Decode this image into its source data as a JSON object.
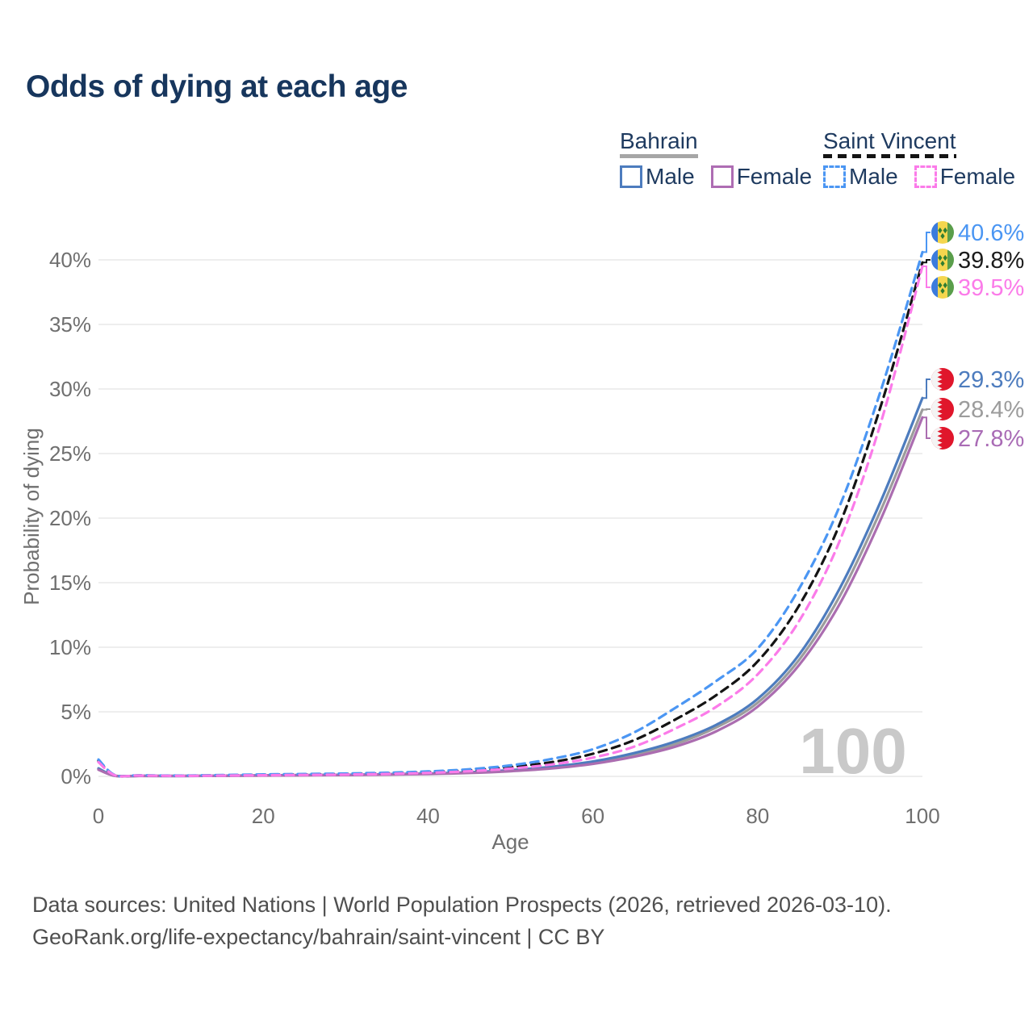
{
  "title": "Odds of dying at each age",
  "legend": {
    "groups": [
      {
        "name": "Bahrain",
        "rule_color": "#a6a6a6",
        "rule_style": "solid",
        "items": [
          {
            "label": "Male",
            "color": "#4d7cbe",
            "dash": "solid"
          },
          {
            "label": "Female",
            "color": "#ae6db3",
            "dash": "solid"
          }
        ]
      },
      {
        "name": "Saint Vincent",
        "rule_color": "#141414",
        "rule_style": "dashed",
        "items": [
          {
            "label": "Male",
            "color": "#4b96f3",
            "dash": "dashed"
          },
          {
            "label": "Female",
            "color": "#fb7be9",
            "dash": "dashed"
          }
        ]
      }
    ]
  },
  "chart_data": {
    "type": "line",
    "title": "Odds of dying at each age",
    "xlabel": "Age",
    "ylabel": "Probability of dying",
    "xlim": [
      0,
      100
    ],
    "ylim": [
      0,
      42
    ],
    "grid": true,
    "legend_position": "top-right",
    "watermark": "100",
    "xticks": {
      "values": [
        0,
        20,
        40,
        60,
        80,
        100
      ],
      "labels": [
        "0",
        "20",
        "40",
        "60",
        "80",
        "100"
      ]
    },
    "yticks": {
      "values": [
        0,
        5,
        10,
        15,
        20,
        25,
        30,
        35,
        40
      ],
      "labels": [
        "0%",
        "5%",
        "10%",
        "15%",
        "20%",
        "25%",
        "30%",
        "35%",
        "40%"
      ]
    },
    "x": [
      0,
      2,
      5,
      10,
      15,
      20,
      25,
      30,
      35,
      40,
      45,
      50,
      55,
      60,
      65,
      70,
      75,
      80,
      85,
      90,
      95,
      100
    ],
    "series": [
      {
        "name": "Bahrain All",
        "country": "Bahrain",
        "sex": "all",
        "color": "#9c9c9c",
        "dash": "solid",
        "values": [
          0.57,
          0.05,
          0.04,
          0.03,
          0.05,
          0.07,
          0.09,
          0.11,
          0.15,
          0.2,
          0.29,
          0.44,
          0.68,
          1.06,
          1.66,
          2.5,
          3.8,
          5.7,
          9.0,
          14.0,
          20.7,
          28.4
        ],
        "end_label": {
          "text": "28.4%",
          "color": "#9c9c9c",
          "flag": "bahrain-flag-icon"
        }
      },
      {
        "name": "Bahrain Male",
        "country": "Bahrain",
        "sex": "male",
        "color": "#4d7cbe",
        "dash": "solid",
        "values": [
          0.62,
          0.05,
          0.04,
          0.03,
          0.05,
          0.08,
          0.1,
          0.12,
          0.16,
          0.22,
          0.32,
          0.48,
          0.74,
          1.15,
          1.8,
          2.7,
          4.0,
          6.0,
          9.4,
          14.6,
          21.4,
          29.3
        ],
        "end_label": {
          "text": "29.3%",
          "color": "#4d7cbe",
          "flag": "bahrain-flag-icon"
        }
      },
      {
        "name": "Bahrain Female",
        "country": "Bahrain",
        "sex": "female",
        "color": "#ab6db0",
        "dash": "solid",
        "values": [
          0.52,
          0.04,
          0.03,
          0.03,
          0.04,
          0.06,
          0.08,
          0.1,
          0.13,
          0.18,
          0.26,
          0.4,
          0.62,
          0.97,
          1.52,
          2.3,
          3.5,
          5.4,
          8.6,
          13.4,
          20.0,
          27.8
        ],
        "end_label": {
          "text": "27.8%",
          "color": "#a96bb5",
          "flag": "bahrain-flag-icon"
        }
      },
      {
        "name": "Saint Vincent All",
        "country": "Saint Vincent",
        "sex": "all",
        "color": "#141414",
        "dash": "dashed",
        "values": [
          1.2,
          0.09,
          0.07,
          0.05,
          0.08,
          0.12,
          0.15,
          0.19,
          0.24,
          0.33,
          0.47,
          0.72,
          1.1,
          1.75,
          2.8,
          4.4,
          6.3,
          8.9,
          13.2,
          19.6,
          28.8,
          39.8
        ],
        "end_label": {
          "text": "39.8%",
          "color": "#1b1b1b",
          "flag": "saint-vincent-flag-icon"
        }
      },
      {
        "name": "Saint Vincent Male",
        "country": "Saint Vincent",
        "sex": "male",
        "color": "#4b96f3",
        "dash": "dashed",
        "values": [
          1.3,
          0.1,
          0.08,
          0.06,
          0.1,
          0.15,
          0.18,
          0.22,
          0.28,
          0.38,
          0.55,
          0.85,
          1.35,
          2.1,
          3.4,
          5.3,
          7.4,
          9.9,
          14.5,
          21.0,
          30.0,
          40.6
        ],
        "end_label": {
          "text": "40.6%",
          "color": "#4b96f3",
          "flag": "saint-vincent-flag-icon"
        }
      },
      {
        "name": "Saint Vincent Female",
        "country": "Saint Vincent",
        "sex": "female",
        "color": "#fb7be9",
        "dash": "dashed",
        "values": [
          1.1,
          0.08,
          0.06,
          0.04,
          0.06,
          0.09,
          0.11,
          0.14,
          0.19,
          0.27,
          0.4,
          0.6,
          0.92,
          1.45,
          2.3,
          3.7,
          5.4,
          7.9,
          12.0,
          18.3,
          27.5,
          39.5
        ],
        "end_label": {
          "text": "39.5%",
          "color": "#fb7be9",
          "flag": "saint-vincent-flag-icon"
        }
      }
    ]
  },
  "footer": {
    "line1": "Data sources: United Nations | World Population Prospects (2026, retrieved 2026-03-10).",
    "line2": "GeoRank.org/life-expectancy/bahrain/saint-vincent | CC BY"
  }
}
